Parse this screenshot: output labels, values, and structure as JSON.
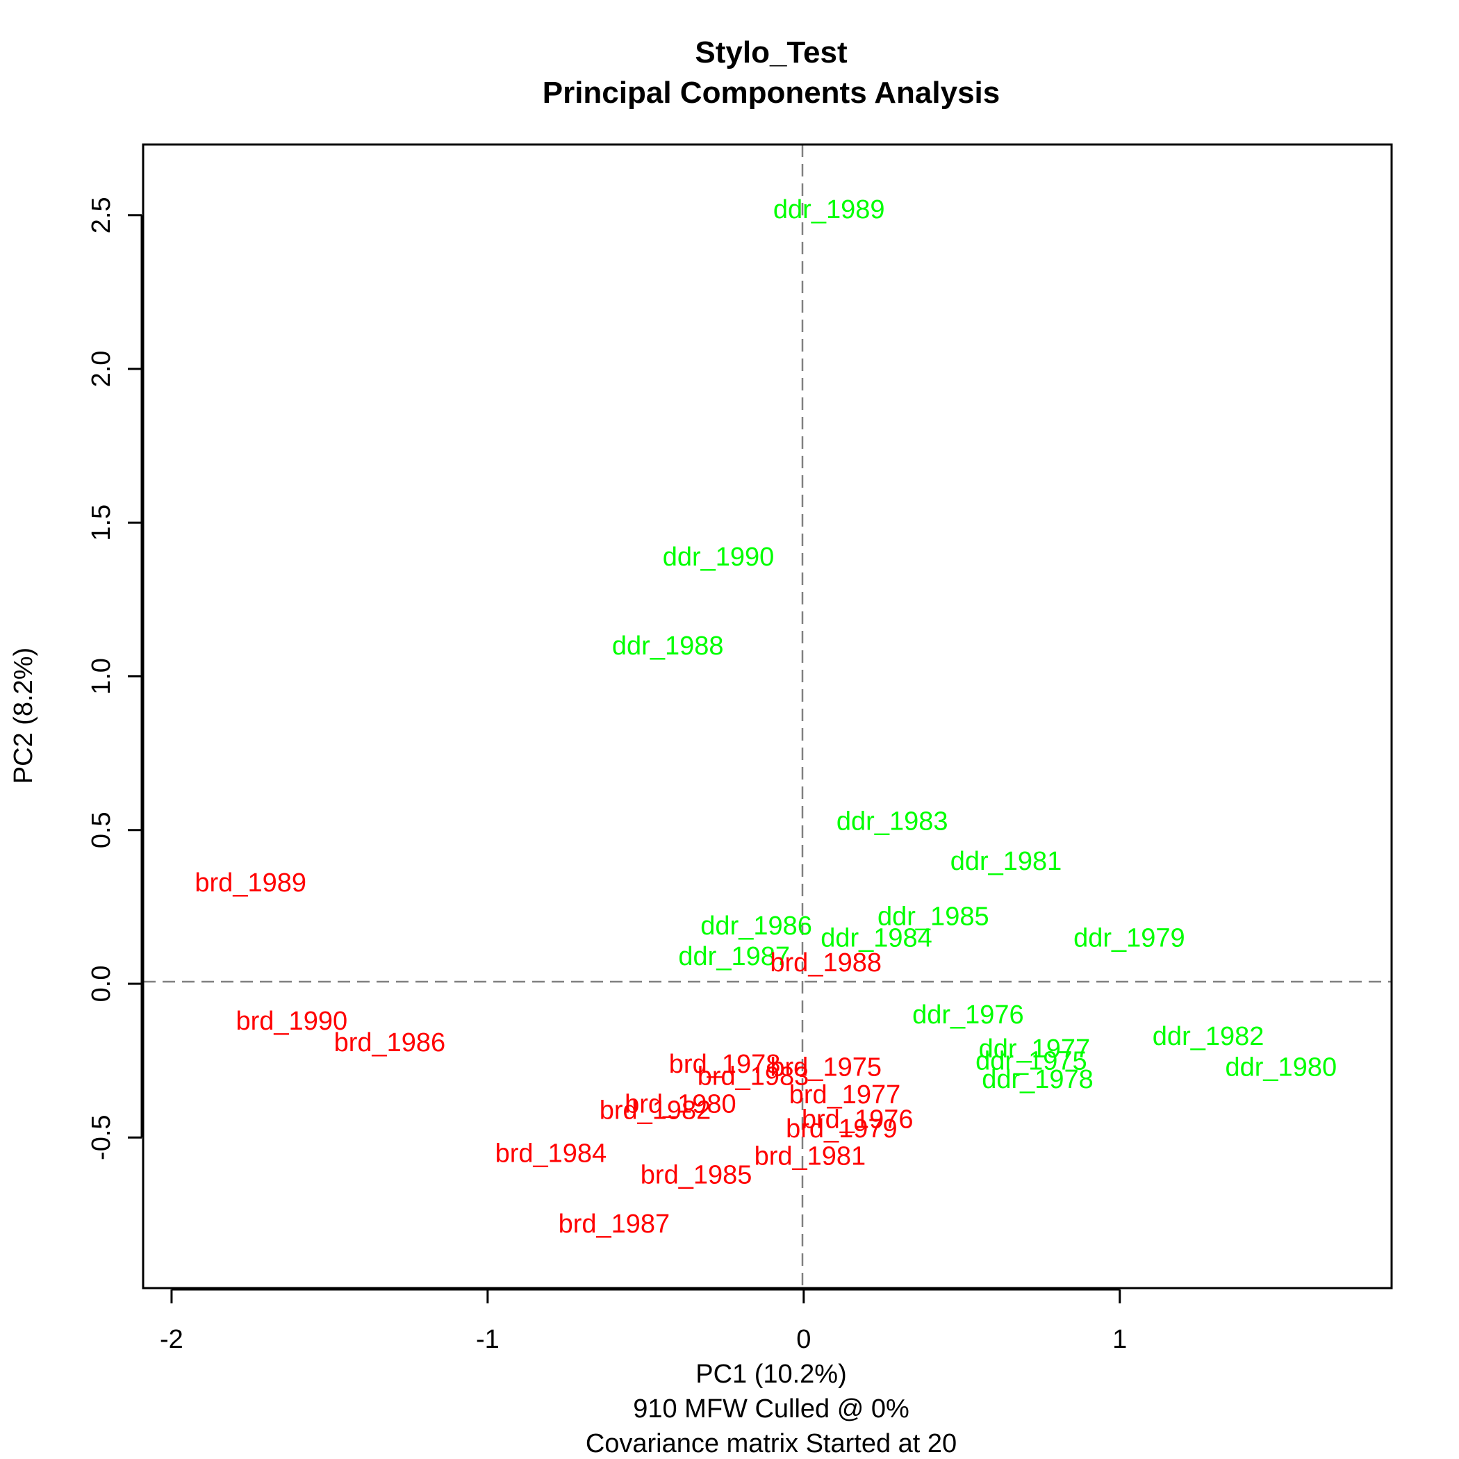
{
  "chart_data": {
    "type": "scatter",
    "title": "Stylo_Test",
    "subtitle": "Principal Components Analysis",
    "xlabel": "PC1 (10.2%)",
    "ylabel": "PC2 (8.2%)",
    "caption_lines": [
      "910 MFW  Culled @ 0%",
      "Covariance matrix Started at 20"
    ],
    "xlim": [
      -2.09,
      1.86
    ],
    "ylim": [
      -0.99,
      2.73
    ],
    "x_ticks": [
      -2,
      -1,
      0,
      1
    ],
    "x_tick_labels": [
      "-2",
      "-1",
      "0",
      "1"
    ],
    "y_ticks": [
      -0.5,
      0.0,
      0.5,
      1.0,
      1.5,
      2.0,
      2.5
    ],
    "y_tick_labels": [
      "-0.5",
      "0.0",
      "0.5",
      "1.0",
      "1.5",
      "2.0",
      "2.5"
    ],
    "reference_lines": {
      "x": 0,
      "y": 0
    },
    "grid": false,
    "colors": {
      "ddr": "#00ff00",
      "brd": "#ff0000",
      "axis": "#000000",
      "reference": "#808080"
    },
    "series": [
      {
        "group": "ddr",
        "points": [
          {
            "label": "ddr_1989",
            "x": 0.08,
            "y": 2.52
          },
          {
            "label": "ddr_1990",
            "x": -0.27,
            "y": 1.39
          },
          {
            "label": "ddr_1988",
            "x": -0.43,
            "y": 1.1
          },
          {
            "label": "ddr_1983",
            "x": 0.28,
            "y": 0.53
          },
          {
            "label": "ddr_1981",
            "x": 0.64,
            "y": 0.4
          },
          {
            "label": "ddr_1985",
            "x": 0.41,
            "y": 0.22
          },
          {
            "label": "ddr_1986",
            "x": -0.15,
            "y": 0.19
          },
          {
            "label": "ddr_1984",
            "x": 0.23,
            "y": 0.15
          },
          {
            "label": "ddr_1979",
            "x": 1.03,
            "y": 0.15
          },
          {
            "label": "ddr_1987",
            "x": -0.22,
            "y": 0.09
          },
          {
            "label": "ddr_1976",
            "x": 0.52,
            "y": -0.1
          },
          {
            "label": "ddr_1982",
            "x": 1.28,
            "y": -0.17
          },
          {
            "label": "ddr_1977",
            "x": 0.73,
            "y": -0.21
          },
          {
            "label": "ddr_1975",
            "x": 0.72,
            "y": -0.25
          },
          {
            "label": "ddr_1980",
            "x": 1.51,
            "y": -0.27
          },
          {
            "label": "ddr_1978",
            "x": 0.74,
            "y": -0.31
          }
        ]
      },
      {
        "group": "brd",
        "points": [
          {
            "label": "brd_1989",
            "x": -1.75,
            "y": 0.33
          },
          {
            "label": "brd_1988",
            "x": 0.07,
            "y": 0.07
          },
          {
            "label": "brd_1990",
            "x": -1.62,
            "y": -0.12
          },
          {
            "label": "brd_1986",
            "x": -1.31,
            "y": -0.19
          },
          {
            "label": "brd_1978",
            "x": -0.25,
            "y": -0.26
          },
          {
            "label": "brd_1975",
            "x": 0.07,
            "y": -0.27
          },
          {
            "label": "brd_1983",
            "x": -0.16,
            "y": -0.3
          },
          {
            "label": "brd_1977",
            "x": 0.13,
            "y": -0.36
          },
          {
            "label": "brd_1980",
            "x": -0.39,
            "y": -0.39
          },
          {
            "label": "brd_1982",
            "x": -0.47,
            "y": -0.41
          },
          {
            "label": "brd_1976",
            "x": 0.17,
            "y": -0.44
          },
          {
            "label": "brd_1979",
            "x": 0.12,
            "y": -0.47
          },
          {
            "label": "brd_1984",
            "x": -0.8,
            "y": -0.55
          },
          {
            "label": "brd_1981",
            "x": 0.02,
            "y": -0.56
          },
          {
            "label": "brd_1985",
            "x": -0.34,
            "y": -0.62
          },
          {
            "label": "brd_1987",
            "x": -0.6,
            "y": -0.78
          }
        ]
      }
    ]
  }
}
